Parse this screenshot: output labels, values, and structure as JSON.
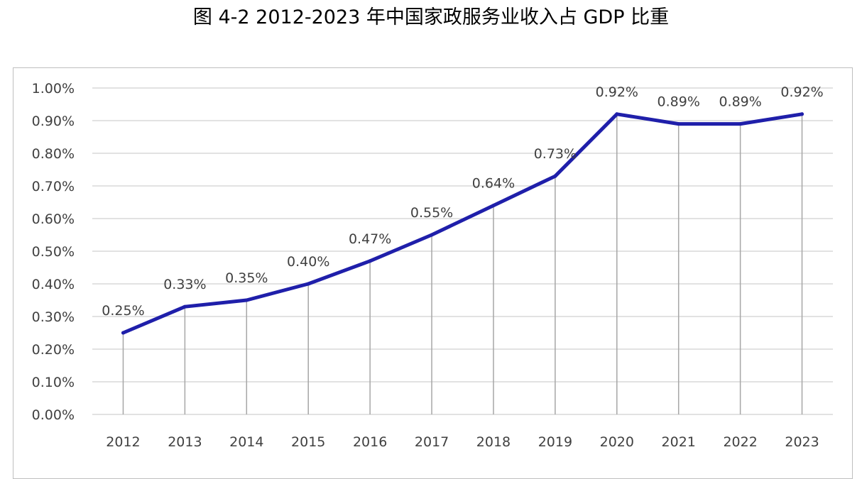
{
  "title": "图 4-2   2012-2023 年中国家政服务业收入占 GDP 比重",
  "chart_data": {
    "type": "line",
    "title": "图 4-2   2012-2023 年中国家政服务业收入占 GDP 比重",
    "xlabel": "",
    "ylabel": "",
    "categories": [
      "2012",
      "2013",
      "2014",
      "2015",
      "2016",
      "2017",
      "2018",
      "2019",
      "2020",
      "2021",
      "2022",
      "2023"
    ],
    "series": [
      {
        "values": [
          0.25,
          0.33,
          0.35,
          0.4,
          0.47,
          0.55,
          0.64,
          0.73,
          0.92,
          0.89,
          0.89,
          0.92
        ],
        "data_labels": [
          "0.25%",
          "0.33%",
          "0.35%",
          "0.40%",
          "0.47%",
          "0.55%",
          "0.64%",
          "0.73%",
          "0.92%",
          "0.89%",
          "0.89%",
          "0.92%"
        ],
        "color": "#1f1faa"
      }
    ],
    "ylim": [
      0,
      1.0
    ],
    "yticks": [
      0,
      0.1,
      0.2,
      0.3,
      0.4,
      0.5,
      0.6,
      0.7,
      0.8,
      0.9,
      1.0
    ],
    "ytick_labels": [
      "0.00%",
      "0.10%",
      "0.20%",
      "0.30%",
      "0.40%",
      "0.50%",
      "0.60%",
      "0.70%",
      "0.80%",
      "0.90%",
      "1.00%"
    ],
    "grid": true,
    "drop_lines": true,
    "legend": "none",
    "colors": {
      "line": "#1f1faa",
      "grid": "#d9d9d9",
      "drop_line": "#a6a6a6",
      "text": "#404040",
      "border": "#bfbfbf"
    }
  }
}
